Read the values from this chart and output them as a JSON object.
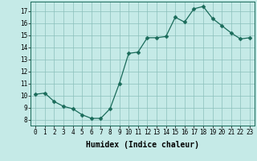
{
  "x": [
    0,
    1,
    2,
    3,
    4,
    5,
    6,
    7,
    8,
    9,
    10,
    11,
    12,
    13,
    14,
    15,
    16,
    17,
    18,
    19,
    20,
    21,
    22,
    23
  ],
  "y": [
    10.1,
    10.2,
    9.5,
    9.1,
    8.9,
    8.4,
    8.1,
    8.1,
    8.9,
    11.0,
    13.5,
    13.6,
    14.8,
    14.8,
    14.9,
    16.5,
    16.1,
    17.2,
    17.4,
    16.4,
    15.8,
    15.2,
    14.7,
    14.8
  ],
  "line_color": "#1a6b5a",
  "marker": "D",
  "marker_size": 2.5,
  "bg_color": "#c5eae7",
  "grid_color": "#8bbfbb",
  "xlabel": "Humidex (Indice chaleur)",
  "ylabel_ticks": [
    8,
    9,
    10,
    11,
    12,
    13,
    14,
    15,
    16,
    17
  ],
  "ylim": [
    7.5,
    17.8
  ],
  "xlim": [
    -0.5,
    23.5
  ],
  "xticks": [
    0,
    1,
    2,
    3,
    4,
    5,
    6,
    7,
    8,
    9,
    10,
    11,
    12,
    13,
    14,
    15,
    16,
    17,
    18,
    19,
    20,
    21,
    22,
    23
  ],
  "tick_fontsize": 5.5,
  "xlabel_fontsize": 7,
  "linewidth": 0.9
}
